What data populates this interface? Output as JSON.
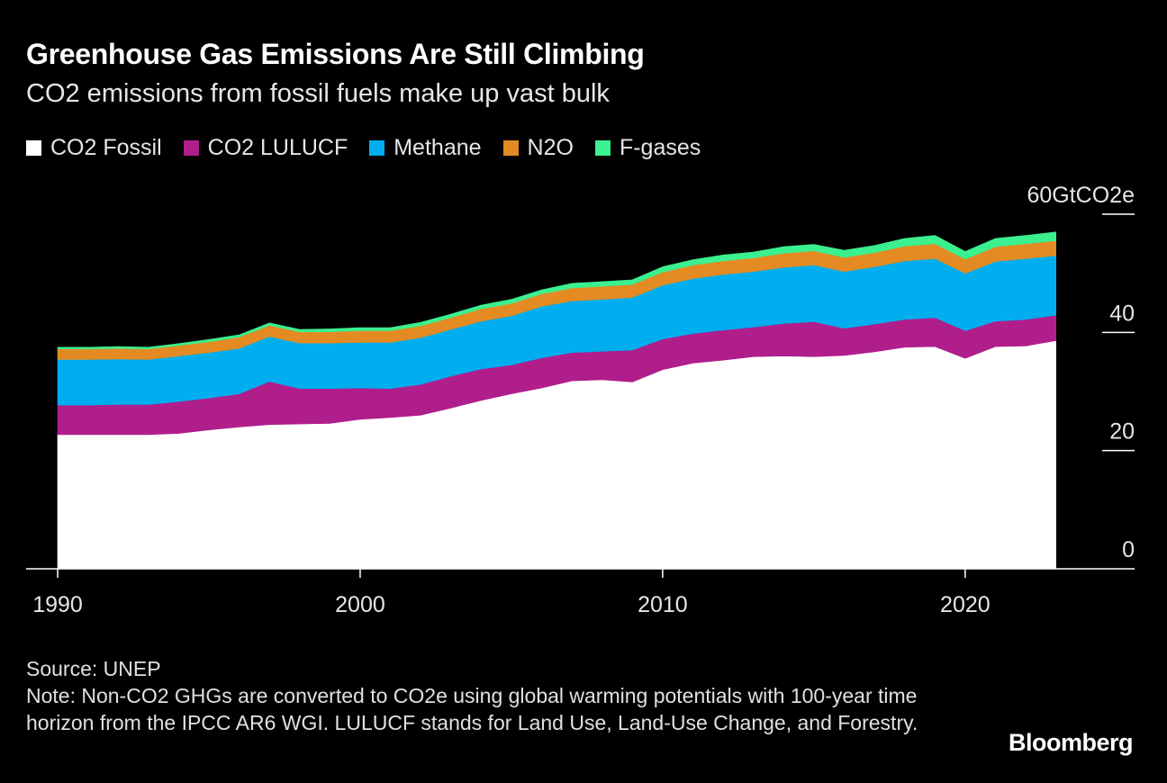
{
  "header": {
    "title": "Greenhouse Gas Emissions Are Still Climbing",
    "subtitle": "CO2 emissions from fossil fuels make up vast bulk"
  },
  "legend": [
    {
      "label": "CO2 Fossil",
      "color": "#ffffff"
    },
    {
      "label": "CO2 LULUCF",
      "color": "#b01e8c"
    },
    {
      "label": "Methane",
      "color": "#00aeef"
    },
    {
      "label": "N2O",
      "color": "#e38b22"
    },
    {
      "label": "F-gases",
      "color": "#3bf08f"
    }
  ],
  "footer": {
    "source": "Source: UNEP",
    "note": "Note: Non-CO2 GHGs are converted to CO2e using global warming potentials with 100-year time horizon from the IPCC AR6 WGI. LULUCF stands for Land Use, Land-Use Change, and Forestry.",
    "brand": "Bloomberg"
  },
  "chart_data": {
    "type": "area",
    "stacked": true,
    "title": "Greenhouse Gas Emissions Are Still Climbing",
    "subtitle": "CO2 emissions from fossil fuels make up vast bulk",
    "xlabel": "",
    "ylabel": "GtCO2e",
    "x": [
      1990,
      1991,
      1992,
      1993,
      1994,
      1995,
      1996,
      1997,
      1998,
      1999,
      2000,
      2001,
      2002,
      2003,
      2004,
      2005,
      2006,
      2007,
      2008,
      2009,
      2010,
      2011,
      2012,
      2013,
      2014,
      2015,
      2016,
      2017,
      2018,
      2019,
      2020,
      2021,
      2022,
      2023
    ],
    "xticks": [
      1990,
      2000,
      2010,
      2020
    ],
    "xtick_labels": [
      "1990",
      "2000",
      "2010",
      "2020"
    ],
    "xlim": [
      1990,
      2025.6
    ],
    "ylim": [
      0,
      60
    ],
    "yticks": [
      0,
      20,
      40,
      60
    ],
    "ytick_labels": [
      "0",
      "20",
      "40",
      "60GtCO2e"
    ],
    "grid": false,
    "legend_position": "top-left",
    "series": [
      {
        "name": "CO2 Fossil",
        "color": "#ffffff",
        "values": [
          22.7,
          22.7,
          22.7,
          22.7,
          22.9,
          23.5,
          24.0,
          24.4,
          24.5,
          24.6,
          25.3,
          25.6,
          26.0,
          27.2,
          28.5,
          29.6,
          30.6,
          31.8,
          32.0,
          31.6,
          33.7,
          34.8,
          35.3,
          35.9,
          36.0,
          35.9,
          36.1,
          36.7,
          37.5,
          37.6,
          35.6,
          37.6,
          37.7,
          38.6
        ]
      },
      {
        "name": "CO2 LULUCF",
        "color": "#b01e8c",
        "values": [
          5.0,
          5.0,
          5.1,
          5.1,
          5.4,
          5.4,
          5.6,
          7.3,
          6.0,
          5.9,
          5.3,
          4.9,
          5.2,
          5.4,
          5.3,
          4.9,
          5.1,
          4.8,
          4.8,
          5.4,
          5.2,
          5.0,
          5.1,
          5.0,
          5.5,
          5.9,
          4.6,
          4.7,
          4.7,
          4.9,
          4.7,
          4.3,
          4.5,
          4.3
        ]
      },
      {
        "name": "Methane",
        "color": "#00aeef",
        "values": [
          7.7,
          7.7,
          7.7,
          7.6,
          7.7,
          7.7,
          7.7,
          7.6,
          7.7,
          7.7,
          7.7,
          7.8,
          7.9,
          7.9,
          8.1,
          8.3,
          8.7,
          8.7,
          8.8,
          8.9,
          9.1,
          9.3,
          9.4,
          9.4,
          9.5,
          9.6,
          9.6,
          9.7,
          9.9,
          10.0,
          9.7,
          10.1,
          10.3,
          10.1
        ]
      },
      {
        "name": "N2O",
        "color": "#e38b22",
        "values": [
          1.8,
          1.8,
          1.8,
          1.8,
          1.8,
          1.8,
          1.9,
          1.9,
          1.9,
          1.9,
          2.0,
          2.0,
          2.0,
          2.0,
          2.1,
          2.1,
          2.1,
          2.2,
          2.2,
          2.2,
          2.2,
          2.3,
          2.3,
          2.3,
          2.4,
          2.4,
          2.4,
          2.4,
          2.5,
          2.5,
          2.4,
          2.5,
          2.5,
          2.5
        ]
      },
      {
        "name": "F-gases",
        "color": "#3bf08f",
        "values": [
          0.3,
          0.3,
          0.3,
          0.3,
          0.3,
          0.4,
          0.4,
          0.4,
          0.4,
          0.5,
          0.5,
          0.5,
          0.6,
          0.6,
          0.6,
          0.7,
          0.7,
          0.8,
          0.8,
          0.8,
          0.9,
          0.9,
          1.0,
          1.0,
          1.1,
          1.1,
          1.2,
          1.2,
          1.3,
          1.4,
          1.3,
          1.4,
          1.4,
          1.5
        ]
      }
    ]
  }
}
